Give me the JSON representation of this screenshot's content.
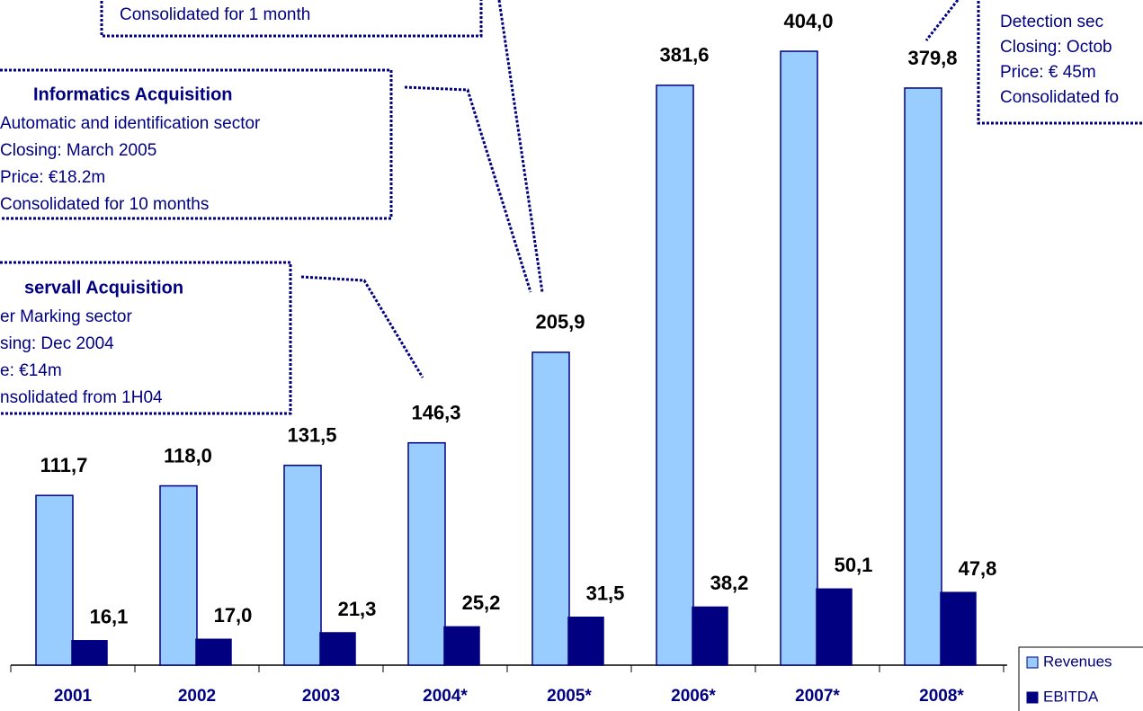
{
  "chart_data": {
    "type": "bar",
    "categories": [
      "2001",
      "2002",
      "2003",
      "2004*",
      "2005*",
      "2006*",
      "2007*",
      "2008*"
    ],
    "series": [
      {
        "name": "Revenues",
        "color": "#99ccff",
        "values": [
          111.7,
          118.0,
          131.5,
          146.3,
          205.9,
          381.6,
          404.0,
          379.8
        ],
        "value_labels": [
          "111,7",
          "118,0",
          "131,5",
          "146,3",
          "205,9",
          "381,6",
          "404,0",
          "379,8"
        ]
      },
      {
        "name": "EBITDA",
        "color": "#000080",
        "values": [
          16.1,
          17.0,
          21.3,
          25.2,
          31.5,
          38.2,
          50.1,
          47.8
        ],
        "value_labels": [
          "16,1",
          "17,0",
          "21,3",
          "25,2",
          "31,5",
          "38,2",
          "50,1",
          "47,8"
        ]
      }
    ],
    "ylim": [
      0,
      420
    ],
    "legend": "bottom-right",
    "annotations": [
      {
        "lines": [
          "Consolidated for 1 month"
        ]
      },
      {
        "title": "Informatics Acquisition",
        "lines": [
          "Automatic and  identification sector",
          "Closing: March 2005",
          "Price: €18.2m",
          "Consolidated for 10  months"
        ]
      },
      {
        "title": "servall Acquisition",
        "lines": [
          "er Marking sector",
          "sing: Dec 2004",
          "e: €14m",
          "nsolidated from 1H04"
        ]
      },
      {
        "lines": [
          "Detection sec",
          "Closing: Octob",
          "Price: € 45m",
          "Consolidated fo"
        ]
      }
    ]
  }
}
